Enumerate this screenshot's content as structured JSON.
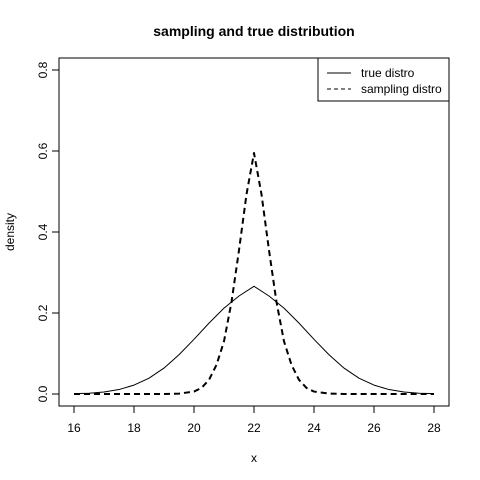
{
  "chart_data": {
    "type": "line",
    "title": "sampling and true distribution",
    "xlabel": "x",
    "ylabel": "density",
    "xlim": [
      16,
      28
    ],
    "ylim": [
      0,
      0.8
    ],
    "x_ticks": [
      "16",
      "18",
      "20",
      "22",
      "24",
      "26",
      "28"
    ],
    "y_ticks": [
      "0.0",
      "0.2",
      "0.4",
      "0.6",
      "0.8"
    ],
    "grid": false,
    "legend_position": "top-right",
    "series": [
      {
        "name": "true distro",
        "line_style": "solid",
        "color": "#000000",
        "x": [
          16,
          16.5,
          17,
          17.5,
          18,
          18.5,
          19,
          19.5,
          20,
          20.5,
          21,
          21.5,
          22,
          22.5,
          23,
          23.5,
          24,
          24.5,
          25,
          25.5,
          26,
          26.5,
          27,
          27.5,
          28
        ],
        "y": [
          0.001,
          0.002,
          0.005,
          0.011,
          0.022,
          0.039,
          0.064,
          0.097,
          0.135,
          0.175,
          0.212,
          0.242,
          0.266,
          0.242,
          0.212,
          0.175,
          0.135,
          0.097,
          0.064,
          0.039,
          0.022,
          0.011,
          0.005,
          0.002,
          0.001
        ]
      },
      {
        "name": "sampling distro",
        "line_style": "dashed",
        "color": "#000000",
        "x": [
          16,
          17,
          18,
          19,
          19.5,
          20,
          20.25,
          20.5,
          20.75,
          21,
          21.25,
          21.5,
          21.75,
          22,
          22.25,
          22.5,
          22.75,
          23,
          23.25,
          23.5,
          23.75,
          24,
          24.5,
          25,
          26,
          27,
          28
        ],
        "y": [
          0,
          0,
          0,
          0.0001,
          0.001,
          0.006,
          0.015,
          0.035,
          0.072,
          0.13,
          0.227,
          0.355,
          0.493,
          0.595,
          0.493,
          0.355,
          0.227,
          0.13,
          0.072,
          0.035,
          0.015,
          0.006,
          0.001,
          0.0001,
          0,
          0,
          0
        ]
      }
    ]
  }
}
